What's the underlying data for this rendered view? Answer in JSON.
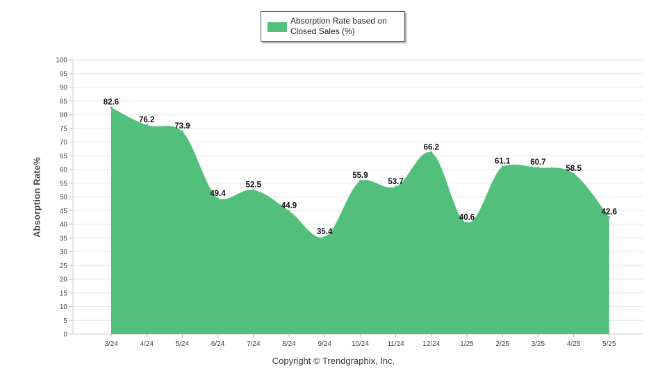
{
  "chart_data": {
    "type": "area",
    "categories": [
      "3/24",
      "4/24",
      "5/24",
      "6/24",
      "7/24",
      "8/24",
      "9/24",
      "10/24",
      "11/24",
      "12/24",
      "1/25",
      "2/25",
      "3/25",
      "4/25",
      "5/25"
    ],
    "series": [
      {
        "name": "Absorption Rate based on Closed Sales (%)",
        "values": [
          82.6,
          76.2,
          73.9,
          49.4,
          52.5,
          44.9,
          35.4,
          55.9,
          53.7,
          66.2,
          40.6,
          61.1,
          60.7,
          58.5,
          42.6
        ]
      }
    ],
    "value_labels": [
      "82.6",
      "76.2",
      "73.9",
      "49.4",
      "52.5",
      "44.9",
      "35.4",
      "55.9",
      "53.7",
      "66.2",
      "40.6",
      "61.1",
      "60.7",
      "58.5",
      "42.6"
    ],
    "yticks": [
      "0",
      "5",
      "10",
      "15",
      "20",
      "25",
      "30",
      "35",
      "40",
      "45",
      "50",
      "55",
      "60",
      "65",
      "70",
      "75",
      "80",
      "85",
      "90",
      "95",
      "100"
    ],
    "ylim": [
      0,
      100
    ],
    "ylabel": "Absorption Rate%",
    "xlabel": "",
    "title": "",
    "grid": true,
    "legend_position": "top-center",
    "fill_color": "#52bf7c"
  },
  "legend": {
    "label": "Absorption Rate based on Closed Sales (%)"
  },
  "footer": {
    "copyright": "Copyright © Trendgraphix, Inc."
  }
}
